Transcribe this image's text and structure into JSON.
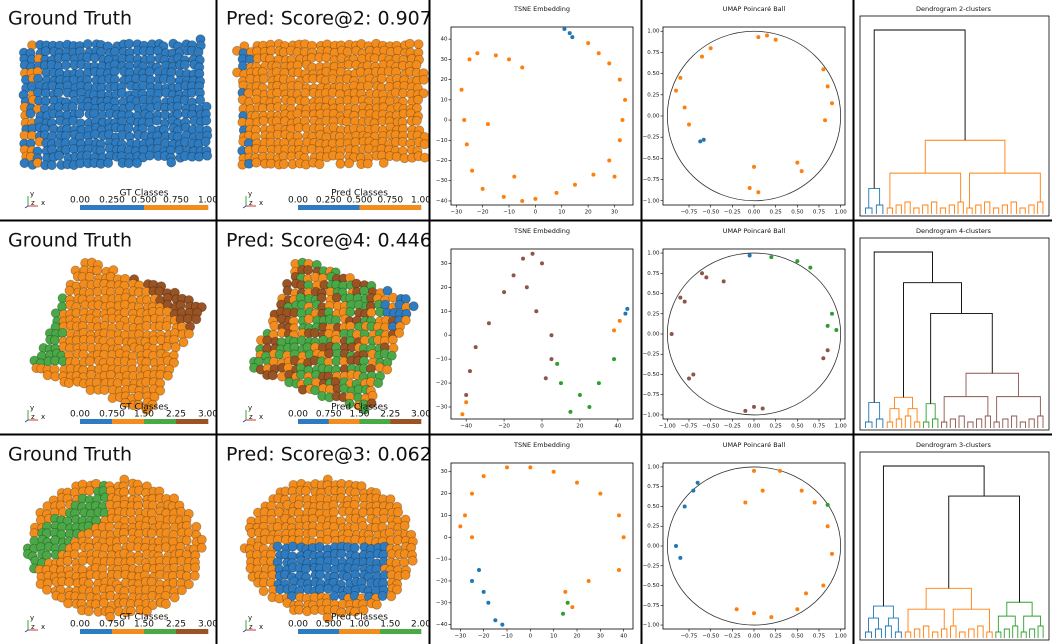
{
  "chart_data": [
    {
      "type": "render",
      "title": "Ground Truth",
      "axes_triad": [
        "y",
        "z",
        "x"
      ],
      "colorbar": {
        "label": "GT Classes",
        "clim": [
          0,
          1
        ],
        "colors": [
          "#2f7bbf",
          "#f28d1d"
        ],
        "ticks": [
          {
            "value": 0,
            "label": "0.00"
          },
          {
            "value": 0.25,
            "label": "0.250"
          },
          {
            "value": 0.5,
            "label": "0.500"
          },
          {
            "value": 0.75,
            "label": "0.750"
          },
          {
            "value": 1,
            "label": "1.00"
          }
        ]
      }
    },
    {
      "type": "render",
      "title": "Pred: Score@2: 0.907",
      "axes_triad": [
        "y",
        "z",
        "x"
      ],
      "colorbar": {
        "label": "Pred Classes",
        "clim": [
          0,
          1
        ],
        "colors": [
          "#2f7bbf",
          "#f28d1d"
        ],
        "ticks": [
          {
            "value": 0,
            "label": "0.00"
          },
          {
            "value": 0.25,
            "label": "0.250"
          },
          {
            "value": 0.5,
            "label": "0.500"
          },
          {
            "value": 0.75,
            "label": "0.750"
          },
          {
            "value": 1,
            "label": "1.00"
          }
        ]
      }
    },
    {
      "type": "scatter",
      "title": "TSNE Embedding",
      "xlim": [
        -32,
        37
      ],
      "ylim": [
        -42,
        46
      ],
      "xticks": [
        {
          "value": -30,
          "label": "−30"
        },
        {
          "value": -20,
          "label": "−20"
        },
        {
          "value": -10,
          "label": "−10"
        },
        0,
        10,
        20,
        30
      ],
      "yticks": [
        {
          "value": -40,
          "label": "−40"
        },
        {
          "value": -30,
          "label": "−30"
        },
        {
          "value": -20,
          "label": "−20"
        },
        {
          "value": -10,
          "label": "−10"
        },
        0,
        10,
        20,
        30,
        40
      ],
      "series": [
        {
          "color": "#ff7f0e",
          "x": [
            -25,
            -22,
            -15,
            -10,
            -5,
            -28,
            -27,
            -26,
            -24,
            -20,
            -12,
            -5,
            0,
            8,
            15,
            22,
            28,
            32,
            33,
            34,
            32,
            28,
            24,
            20,
            -18,
            -8,
            30
          ],
          "values": [
            30,
            33,
            32,
            30,
            26,
            15,
            0,
            -12,
            -25,
            -34,
            -38,
            -40,
            -39,
            -36,
            -32,
            -27,
            -20,
            -10,
            0,
            10,
            20,
            28,
            33,
            38,
            -2,
            -28,
            -28
          ]
        },
        {
          "color": "#1f77b4",
          "x": [
            11,
            13,
            14
          ],
          "values": [
            45,
            43,
            41
          ]
        }
      ]
    },
    {
      "type": "scatter",
      "title": "UMAP Poincaré Ball",
      "poincare_disk": true,
      "xlim": [
        -1.05,
        1.05
      ],
      "ylim": [
        -1.05,
        1.05
      ],
      "xticks": [
        {
          "value": -0.75,
          "label": "−0.75"
        },
        {
          "value": -0.5,
          "label": "−0.50"
        },
        {
          "value": -0.25,
          "label": "−0.25"
        },
        {
          "value": 0,
          "label": "0.00"
        },
        0.25,
        {
          "value": 0.5,
          "label": "0.50"
        },
        0.75,
        {
          "value": 1,
          "label": "1.00"
        }
      ],
      "yticks": [
        {
          "value": -1,
          "label": "−1.00"
        },
        {
          "value": -0.75,
          "label": "−0.75"
        },
        {
          "value": -0.5,
          "label": "−0.50"
        },
        {
          "value": -0.25,
          "label": "−0.25"
        },
        {
          "value": 0,
          "label": "0.00"
        },
        0.25,
        {
          "value": 0.5,
          "label": "0.50"
        },
        0.75,
        {
          "value": 1,
          "label": "1.00"
        }
      ],
      "series": [
        {
          "color": "#ff7f0e",
          "x": [
            0.05,
            0.15,
            0.25,
            -0.5,
            -0.85,
            -0.9,
            -0.8,
            -0.75,
            0.85,
            0.9,
            0.82,
            0.8,
            -0.05,
            0,
            0.05,
            0.5,
            0.55,
            -0.6
          ],
          "values": [
            0.93,
            0.95,
            0.9,
            0.8,
            0.45,
            0.3,
            0.1,
            -0.1,
            0.35,
            0.15,
            -0.05,
            0.55,
            -0.85,
            -0.6,
            -0.9,
            -0.55,
            -0.65,
            0.7
          ]
        },
        {
          "color": "#1f77b4",
          "x": [
            -0.62,
            -0.58
          ],
          "values": [
            -0.3,
            -0.28
          ]
        }
      ]
    },
    {
      "type": "dendrogram",
      "title": "Dendrogram 2-clusters",
      "colors": [
        "#1f77b4",
        "#ff7f0e"
      ]
    },
    {
      "type": "render",
      "title": "Ground Truth",
      "axes_triad": [
        "y",
        "z",
        "x"
      ],
      "colorbar": {
        "label": "GT Classes",
        "clim": [
          0,
          3
        ],
        "colors": [
          "#2f7bbf",
          "#f28d1d",
          "#4aa846",
          "#9a5323"
        ],
        "ticks": [
          {
            "value": 0,
            "label": "0.00"
          },
          {
            "value": 0.75,
            "label": "0.750"
          },
          {
            "value": 1.5,
            "label": "1.50"
          },
          2.25,
          {
            "value": 3,
            "label": "3.00"
          }
        ]
      }
    },
    {
      "type": "render",
      "title": "Pred: Score@4: 0.446",
      "axes_triad": [
        "y",
        "z",
        "x"
      ],
      "colorbar": {
        "label": "Pred Classes",
        "clim": [
          0,
          3
        ],
        "colors": [
          "#2f7bbf",
          "#f28d1d",
          "#4aa846",
          "#9a5323"
        ],
        "ticks": [
          {
            "value": 0,
            "label": "0.00"
          },
          {
            "value": 0.75,
            "label": "0.750"
          },
          {
            "value": 1.5,
            "label": "1.50"
          },
          2.25,
          {
            "value": 3,
            "label": "3.00"
          }
        ]
      }
    },
    {
      "type": "scatter",
      "title": "TSNE Embedding",
      "xlim": [
        -48,
        48
      ],
      "ylim": [
        -35,
        36
      ],
      "xticks": [
        {
          "value": -40,
          "label": "−40"
        },
        {
          "value": -20,
          "label": "−20"
        },
        0,
        20,
        40
      ],
      "yticks": [
        {
          "value": -30,
          "label": "−30"
        },
        {
          "value": -20,
          "label": "−20"
        },
        {
          "value": -10,
          "label": "−10"
        },
        0,
        10,
        20,
        30
      ],
      "series": [
        {
          "color": "#8c564b",
          "x": [
            -5,
            -10,
            0,
            -15,
            -20,
            -28,
            -35,
            -38,
            -40,
            -8,
            -3,
            5,
            5,
            2
          ],
          "values": [
            34,
            32,
            30,
            25,
            18,
            5,
            -5,
            -15,
            -25,
            20,
            10,
            0,
            -10,
            -18
          ]
        },
        {
          "color": "#2ca02c",
          "x": [
            10,
            20,
            30,
            38,
            15,
            25,
            8
          ],
          "values": [
            -20,
            -25,
            -20,
            -10,
            -32,
            -30,
            -12
          ]
        },
        {
          "color": "#ff7f0e",
          "x": [
            -42,
            -40,
            38,
            41
          ],
          "values": [
            -33,
            -28,
            2,
            6
          ]
        },
        {
          "color": "#1f77b4",
          "x": [
            44,
            45
          ],
          "values": [
            9,
            11
          ]
        }
      ]
    },
    {
      "type": "scatter",
      "title": "UMAP Poincaré Ball",
      "poincare_disk": true,
      "xlim": [
        -1.05,
        1.05
      ],
      "ylim": [
        -1.05,
        1.05
      ],
      "xticks": [
        {
          "value": -1,
          "label": "−1.00"
        },
        {
          "value": -0.75,
          "label": "−0.75"
        },
        {
          "value": -0.5,
          "label": "−0.50"
        },
        {
          "value": -0.25,
          "label": "−0.25"
        },
        {
          "value": 0,
          "label": "0.00"
        },
        0.25,
        {
          "value": 0.5,
          "label": "0.50"
        },
        0.75,
        {
          "value": 1,
          "label": "1.00"
        }
      ],
      "yticks": [
        {
          "value": -1,
          "label": "−1.00"
        },
        {
          "value": -0.75,
          "label": "−0.75"
        },
        {
          "value": -0.5,
          "label": "−0.50"
        },
        {
          "value": -0.25,
          "label": "−0.25"
        },
        {
          "value": 0,
          "label": "0.00"
        },
        0.25,
        {
          "value": 0.5,
          "label": "0.50"
        },
        0.75,
        {
          "value": 1,
          "label": "1.00"
        }
      ],
      "series": [
        {
          "color": "#8c564b",
          "x": [
            -0.6,
            -0.55,
            -0.85,
            -0.8,
            -0.95,
            -0.75,
            -0.7,
            -0.1,
            0,
            0.1,
            -0.35,
            0.85,
            0.8
          ],
          "values": [
            0.75,
            0.7,
            0.45,
            0.4,
            0,
            -0.55,
            -0.5,
            -0.95,
            -0.9,
            -0.92,
            0.65,
            -0.2,
            -0.3
          ]
        },
        {
          "color": "#2ca02c",
          "x": [
            0.2,
            0.5,
            0.65,
            0.85,
            0.95,
            0.9
          ],
          "values": [
            0.95,
            0.9,
            0.82,
            0.1,
            0.05,
            0.25
          ]
        },
        {
          "color": "#1f77b4",
          "x": [
            -0.05
          ],
          "values": [
            0.97
          ]
        }
      ]
    },
    {
      "type": "dendrogram",
      "title": "Dendrogram 4-clusters",
      "colors": [
        "#1f77b4",
        "#ff7f0e",
        "#2ca02c",
        "#8c564b"
      ]
    },
    {
      "type": "render",
      "title": "Ground Truth",
      "axes_triad": [
        "y",
        "z",
        "x"
      ],
      "colorbar": {
        "label": "GT Classes",
        "clim": [
          0,
          3
        ],
        "colors": [
          "#2f7bbf",
          "#f28d1d",
          "#4aa846",
          "#9a5323"
        ],
        "ticks": [
          {
            "value": 0,
            "label": "0.00"
          },
          {
            "value": 0.75,
            "label": "0.750"
          },
          {
            "value": 1.5,
            "label": "1.50"
          },
          2.25,
          {
            "value": 3,
            "label": "3.00"
          }
        ]
      }
    },
    {
      "type": "render",
      "title": "Pred: Score@3: 0.062",
      "axes_triad": [
        "y",
        "z",
        "x"
      ],
      "colorbar": {
        "label": "Pred Classes",
        "clim": [
          0,
          2
        ],
        "colors": [
          "#2f7bbf",
          "#f28d1d",
          "#4aa846"
        ],
        "ticks": [
          {
            "value": 0,
            "label": "0.00"
          },
          {
            "value": 0.5,
            "label": "0.500"
          },
          {
            "value": 1,
            "label": "1.00"
          },
          {
            "value": 1.5,
            "label": "1.50"
          },
          {
            "value": 2,
            "label": "2.00"
          }
        ]
      }
    },
    {
      "type": "scatter",
      "title": "TSNE Embedding",
      "xlim": [
        -34,
        44
      ],
      "ylim": [
        -42,
        34
      ],
      "xticks": [
        {
          "value": -30,
          "label": "−30"
        },
        {
          "value": -20,
          "label": "−20"
        },
        {
          "value": -10,
          "label": "−10"
        },
        0,
        10,
        20,
        30,
        40
      ],
      "yticks": [
        {
          "value": -40,
          "label": "−40"
        },
        {
          "value": -30,
          "label": "−30"
        },
        {
          "value": -20,
          "label": "−20"
        },
        {
          "value": -10,
          "label": "−10"
        },
        0,
        10,
        20,
        30
      ],
      "series": [
        {
          "color": "#ff7f0e",
          "x": [
            -28,
            -25,
            -20,
            -10,
            0,
            10,
            20,
            30,
            38,
            40,
            38,
            25,
            -25,
            -30,
            15,
            18
          ],
          "values": [
            10,
            20,
            28,
            32,
            32,
            30,
            25,
            20,
            10,
            0,
            -15,
            -20,
            0,
            5,
            -25,
            -32
          ]
        },
        {
          "color": "#2ca02c",
          "x": [
            14,
            16
          ],
          "values": [
            -35,
            -30
          ]
        },
        {
          "color": "#1f77b4",
          "x": [
            -22,
            -20,
            -18,
            -15,
            -12,
            -25
          ],
          "values": [
            -15,
            -25,
            -30,
            -38,
            -40,
            -20
          ]
        }
      ]
    },
    {
      "type": "scatter",
      "title": "UMAP Poincaré Ball",
      "poincare_disk": true,
      "xlim": [
        -1.05,
        1.05
      ],
      "ylim": [
        -1.05,
        1.05
      ],
      "xticks": [
        {
          "value": -0.75,
          "label": "−0.75"
        },
        {
          "value": -0.5,
          "label": "−0.50"
        },
        {
          "value": -0.25,
          "label": "−0.25"
        },
        {
          "value": 0,
          "label": "0.00"
        },
        0.25,
        {
          "value": 0.5,
          "label": "0.50"
        },
        0.75,
        {
          "value": 1,
          "label": "1.00"
        }
      ],
      "yticks": [
        {
          "value": -1,
          "label": "−1.00"
        },
        {
          "value": -0.75,
          "label": "−0.75"
        },
        {
          "value": -0.5,
          "label": "−0.50"
        },
        {
          "value": -0.25,
          "label": "−0.25"
        },
        {
          "value": 0,
          "label": "0.00"
        },
        0.25,
        {
          "value": 0.5,
          "label": "0.50"
        },
        0.75,
        {
          "value": 1,
          "label": "1.00"
        }
      ],
      "series": [
        {
          "color": "#ff7f0e",
          "x": [
            0,
            0.3,
            0.55,
            0.7,
            0.85,
            0.9,
            0.8,
            0.5,
            0.2,
            0,
            -0.2,
            0.6,
            -0.1,
            0.1
          ],
          "values": [
            0.95,
            0.95,
            0.7,
            0.55,
            0.25,
            -0.1,
            -0.5,
            -0.8,
            -0.9,
            -0.85,
            -0.8,
            -0.6,
            0.55,
            0.7
          ]
        },
        {
          "color": "#1f77b4",
          "x": [
            -0.65,
            -0.7,
            -0.8,
            -0.9,
            -0.85
          ],
          "values": [
            0.8,
            0.7,
            0.5,
            0,
            -0.15
          ]
        },
        {
          "color": "#2ca02c",
          "x": [
            0.85
          ],
          "values": [
            0.52
          ]
        }
      ]
    },
    {
      "type": "dendrogram",
      "title": "Dendrogram 3-clusters",
      "colors": [
        "#1f77b4",
        "#ff7f0e",
        "#2ca02c"
      ]
    }
  ]
}
